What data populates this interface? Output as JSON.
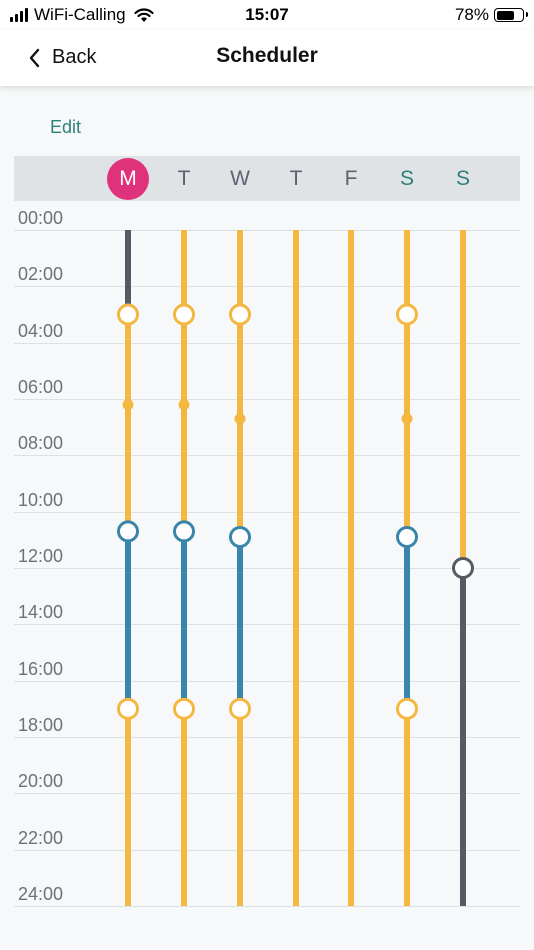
{
  "status_bar": {
    "carrier": "WiFi-Calling",
    "time": "15:07",
    "battery_percent": "78%",
    "battery_level": 0.78
  },
  "nav": {
    "back_label": "Back",
    "title": "Scheduler"
  },
  "edit_label": "Edit",
  "days": [
    {
      "label": "M",
      "selected": true,
      "weekend": false
    },
    {
      "label": "T",
      "selected": false,
      "weekend": false
    },
    {
      "label": "W",
      "selected": false,
      "weekend": false
    },
    {
      "label": "T",
      "selected": false,
      "weekend": false
    },
    {
      "label": "F",
      "selected": false,
      "weekend": false
    },
    {
      "label": "S",
      "selected": false,
      "weekend": true
    },
    {
      "label": "S",
      "selected": false,
      "weekend": true
    }
  ],
  "time_labels": [
    "00:00",
    "02:00",
    "04:00",
    "06:00",
    "08:00",
    "10:00",
    "12:00",
    "14:00",
    "16:00",
    "18:00",
    "20:00",
    "22:00",
    "24:00"
  ],
  "colors": {
    "yellow": "#f4b740",
    "blue": "#3a86aa",
    "gray": "#555a63",
    "selected_day": "#e0327a",
    "accent_teal": "#2f7f7a"
  },
  "schedule": [
    {
      "day": "M",
      "segments": [
        {
          "from": 0,
          "to": 3,
          "color": "gray"
        },
        {
          "from": 3,
          "to": 10.7,
          "color": "yellow"
        },
        {
          "from": 10.7,
          "to": 17,
          "color": "blue"
        },
        {
          "from": 17,
          "to": 24,
          "color": "yellow"
        }
      ],
      "markers": [
        {
          "time": 3,
          "type": "ring",
          "color": "yellow"
        },
        {
          "time": 6.2,
          "type": "dot",
          "color": "yellow"
        },
        {
          "time": 10.7,
          "type": "ring",
          "color": "blue"
        },
        {
          "time": 17,
          "type": "ring",
          "color": "yellow"
        }
      ]
    },
    {
      "day": "T",
      "segments": [
        {
          "from": 0,
          "to": 10.7,
          "color": "yellow"
        },
        {
          "from": 10.7,
          "to": 17,
          "color": "blue"
        },
        {
          "from": 17,
          "to": 24,
          "color": "yellow"
        }
      ],
      "markers": [
        {
          "time": 3,
          "type": "ring",
          "color": "yellow"
        },
        {
          "time": 6.2,
          "type": "dot",
          "color": "yellow"
        },
        {
          "time": 10.7,
          "type": "ring",
          "color": "blue"
        },
        {
          "time": 17,
          "type": "ring",
          "color": "yellow"
        }
      ]
    },
    {
      "day": "W",
      "segments": [
        {
          "from": 0,
          "to": 10.9,
          "color": "yellow"
        },
        {
          "from": 10.9,
          "to": 17,
          "color": "blue"
        },
        {
          "from": 17,
          "to": 24,
          "color": "yellow"
        }
      ],
      "markers": [
        {
          "time": 3,
          "type": "ring",
          "color": "yellow"
        },
        {
          "time": 6.7,
          "type": "dot",
          "color": "yellow"
        },
        {
          "time": 10.9,
          "type": "ring",
          "color": "blue"
        },
        {
          "time": 17,
          "type": "ring",
          "color": "yellow"
        }
      ]
    },
    {
      "day": "T",
      "segments": [
        {
          "from": 0,
          "to": 24,
          "color": "yellow"
        }
      ],
      "markers": []
    },
    {
      "day": "F",
      "segments": [
        {
          "from": 0,
          "to": 24,
          "color": "yellow"
        }
      ],
      "markers": []
    },
    {
      "day": "S",
      "segments": [
        {
          "from": 0,
          "to": 10.9,
          "color": "yellow"
        },
        {
          "from": 10.9,
          "to": 17,
          "color": "blue"
        },
        {
          "from": 17,
          "to": 24,
          "color": "yellow"
        }
      ],
      "markers": [
        {
          "time": 3,
          "type": "ring",
          "color": "yellow"
        },
        {
          "time": 6.7,
          "type": "dot",
          "color": "yellow"
        },
        {
          "time": 10.9,
          "type": "ring",
          "color": "blue"
        },
        {
          "time": 17,
          "type": "ring",
          "color": "yellow"
        }
      ]
    },
    {
      "day": "S",
      "segments": [
        {
          "from": 0,
          "to": 12,
          "color": "yellow"
        },
        {
          "from": 12,
          "to": 24,
          "color": "gray"
        }
      ],
      "markers": [
        {
          "time": 12,
          "type": "ring",
          "color": "gray"
        }
      ]
    }
  ]
}
